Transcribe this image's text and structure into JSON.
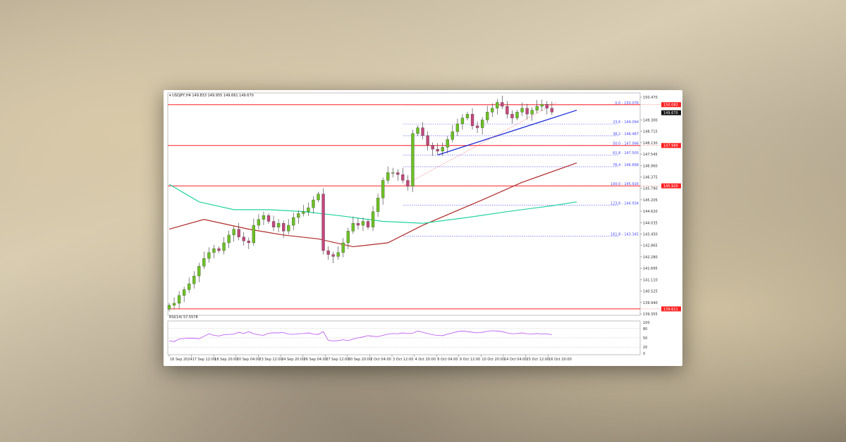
{
  "header": {
    "symbol": "USDJPY,H4",
    "ohlc": "149.833 149.955 149.661 149.670"
  },
  "colors": {
    "up": "#6cc024",
    "down": "#c2477c",
    "hline": "#ff2020",
    "fib": "#4a4aff",
    "trend": "#1a2bd8",
    "ma200": "#b02a2a",
    "ma100": "#22d3a0",
    "rsi": "#b84cf0"
  },
  "chart_data": {
    "type": "candlestick",
    "ylim": [
      139.355,
      150.47
    ],
    "y_ticks": [
      "150.470",
      "149.300",
      "148.715",
      "148.130",
      "147.545",
      "146.960",
      "146.375",
      "145.790",
      "145.205",
      "144.620",
      "144.035",
      "143.450",
      "142.865",
      "142.280",
      "141.695",
      "141.110",
      "140.525",
      "139.940",
      "139.355"
    ],
    "x_ticks": [
      "16 Sep 2024",
      "17 Sep 12:00",
      "18 Sep 20:00",
      "20 Sep 04:00",
      "23 Sep 12:00",
      "24 Sep 20:00",
      "26 Sep 04:00",
      "27 Sep 12:00",
      "30 Sep 20:00",
      "2 Oct 04:00",
      "3 Oct 12:00",
      "4 Oct 20:00",
      "8 Oct 04:00",
      "9 Oct 12:00",
      "10 Oct 20:00",
      "14 Oct 04:00",
      "15 Oct 12:00",
      "16 Oct 20:00"
    ],
    "closes": [
      139.8,
      139.9,
      140.3,
      140.6,
      140.9,
      141.3,
      141.8,
      142.2,
      142.5,
      142.7,
      142.6,
      143.0,
      143.4,
      143.7,
      143.3,
      143.1,
      143.0,
      143.9,
      144.2,
      144.4,
      144.1,
      143.8,
      144.0,
      143.6,
      143.9,
      144.3,
      144.5,
      144.6,
      144.8,
      145.2,
      145.5,
      142.6,
      142.4,
      142.3,
      142.5,
      143.0,
      143.6,
      144.0,
      143.9,
      144.1,
      143.8,
      144.6,
      145.3,
      146.2,
      146.6,
      146.6,
      146.5,
      146.2,
      145.9,
      148.6,
      148.9,
      148.5,
      148.0,
      147.8,
      147.7,
      147.9,
      148.3,
      148.7,
      149.1,
      149.4,
      149.6,
      149.0,
      148.9,
      149.3,
      149.7,
      149.9,
      150.2,
      150.0,
      149.6,
      149.4,
      149.7,
      149.9,
      149.6,
      149.8,
      150.0,
      150.1,
      149.9,
      149.7
    ],
    "ma_red": [
      [
        0,
        143.7
      ],
      [
        7,
        144.2
      ],
      [
        16,
        143.7
      ],
      [
        23,
        143.4
      ],
      [
        30,
        143.2
      ],
      [
        37,
        142.8
      ],
      [
        44,
        143.0
      ],
      [
        51,
        143.9
      ],
      [
        63,
        145.2
      ],
      [
        71,
        146.1
      ],
      [
        82,
        147.1
      ]
    ],
    "ma_green": [
      [
        0,
        146.0
      ],
      [
        6,
        145.1
      ],
      [
        13,
        144.7
      ],
      [
        20,
        144.7
      ],
      [
        27,
        144.6
      ],
      [
        34,
        144.4
      ],
      [
        43,
        144.1
      ],
      [
        51,
        144.0
      ],
      [
        60,
        144.3
      ],
      [
        68,
        144.6
      ],
      [
        77,
        144.9
      ],
      [
        82,
        145.1
      ]
    ],
    "horizontal_levels": [
      {
        "price": 150.083,
        "label": "150.083"
      },
      {
        "price": 147.989,
        "label": "147.989"
      },
      {
        "price": 145.92,
        "label": "145.920"
      },
      {
        "price": 139.611,
        "label": "139.611"
      }
    ],
    "current_price": "149.670",
    "fib_levels": [
      {
        "price": 150.076,
        "label": "0.0 - 150.076"
      },
      {
        "price": 149.094,
        "label": "23.6 - 149.094"
      },
      {
        "price": 148.487,
        "label": "38.2 - 148.487"
      },
      {
        "price": 147.996,
        "label": "50.0 - 147.996"
      },
      {
        "price": 147.505,
        "label": "61.8 - 147.505"
      },
      {
        "price": 146.898,
        "label": "76.4 - 146.898"
      },
      {
        "price": 145.916,
        "label": "100.0 - 145.916"
      },
      {
        "price": 144.934,
        "label": "123.6 - 144.934"
      },
      {
        "price": 143.345,
        "label": "161.8 - 143.345"
      }
    ],
    "trendline_blue": [
      [
        54,
        147.5
      ],
      [
        82,
        149.8
      ]
    ],
    "trendline_red_dashed": [
      [
        47,
        145.916
      ],
      [
        78,
        150.2
      ]
    ],
    "rsi": {
      "label": "RSI(14) 57.5578",
      "levels": [
        "100",
        "80",
        "50",
        "20",
        "0"
      ],
      "values": [
        40,
        38,
        46,
        48,
        49,
        49,
        47,
        55,
        63,
        58,
        56,
        60,
        61,
        62,
        68,
        64,
        70,
        63,
        60,
        58,
        65,
        66,
        66,
        67,
        62,
        61,
        63,
        64,
        66,
        62,
        61,
        70,
        42,
        40,
        41,
        44,
        41,
        46,
        50,
        53,
        57,
        55,
        54,
        58,
        62,
        64,
        63,
        66,
        64,
        65,
        72,
        68,
        64,
        60,
        58,
        57,
        62,
        66,
        70,
        72,
        70,
        68,
        66,
        68,
        71,
        73,
        72,
        70,
        66,
        63,
        64,
        66,
        63,
        62,
        64,
        62,
        63,
        60
      ]
    }
  }
}
